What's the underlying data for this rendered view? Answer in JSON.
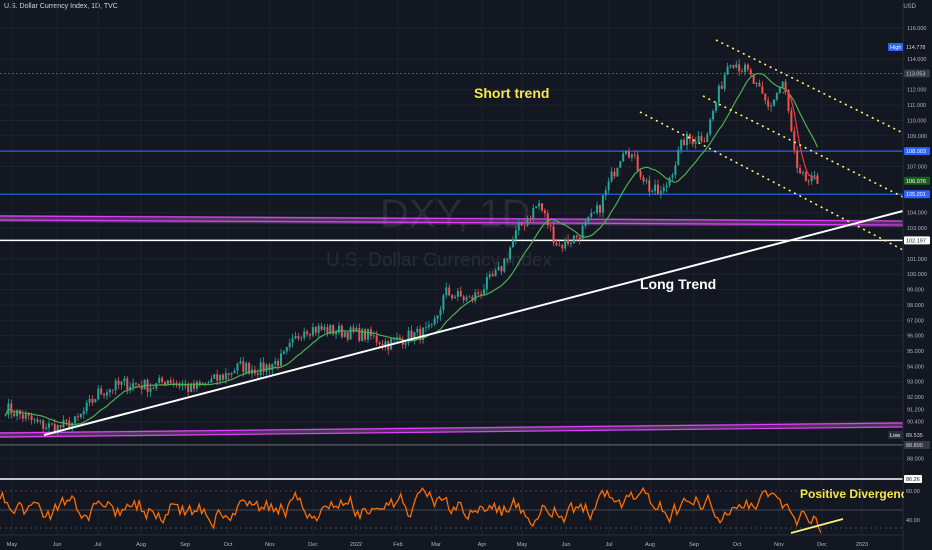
{
  "header": {
    "title": "U.S. Dollar Currency Index, 1D, TVC",
    "currency": "USD"
  },
  "watermark": {
    "symbol": "DXY, 1D",
    "name": "U.S. Dollar Currency Index"
  },
  "annotations": {
    "short_trend": "Short trend",
    "long_trend": "Long Trend",
    "divergence": "Positive Divergence"
  },
  "colors": {
    "background": "#131722",
    "up": "#26a69a",
    "down": "#ef5350",
    "ma": "#4caf50",
    "ma_fast": "#f23645",
    "channel": "#fff176",
    "support": "#2962ff",
    "band": "#e040fb",
    "trendline": "#ffffff",
    "rsi": "#ff6d00"
  },
  "chart_data": {
    "type": "candlestick",
    "price_axis": {
      "ticks": [
        "116.000",
        "114.000",
        "112.000",
        "111.000",
        "110.000",
        "109.000",
        "107.000",
        "104.000",
        "103.000",
        "101.000",
        "100.000",
        "99.000",
        "98.000",
        "97.000",
        "96.000",
        "95.000",
        "94.000",
        "93.000",
        "92.000",
        "91.200",
        "90.400",
        "88.000"
      ],
      "labels": [
        {
          "text": "High",
          "value": "114.778"
        },
        {
          "text": "",
          "value": "113.053"
        },
        {
          "text": "",
          "value": "108.003"
        },
        {
          "text": "",
          "value": "106.076"
        },
        {
          "text": "",
          "value": "105.201"
        },
        {
          "text": "",
          "value": "102.197"
        },
        {
          "text": "Low",
          "value": "89.535"
        },
        {
          "text": "",
          "value": "88.890"
        }
      ]
    },
    "time_axis": [
      "May",
      "Jun",
      "Jul",
      "Aug",
      "Sep",
      "Oct",
      "Nov",
      "Dec",
      "2022",
      "Feb",
      "Mar",
      "Apr",
      "May",
      "Jun",
      "Jul",
      "Aug",
      "Sep",
      "Oct",
      "Nov",
      "Dec",
      "2023"
    ],
    "price_path": [
      [
        "2021-04-25",
        91.3
      ],
      [
        "2021-05-20",
        90.2
      ],
      [
        "2021-06-01",
        90.0
      ],
      [
        "2021-06-15",
        90.4
      ],
      [
        "2021-07-01",
        92.3
      ],
      [
        "2021-07-20",
        92.9
      ],
      [
        "2021-08-10",
        92.7
      ],
      [
        "2021-08-20",
        93.2
      ],
      [
        "2021-09-05",
        92.5
      ],
      [
        "2021-09-25",
        93.2
      ],
      [
        "2021-10-10",
        94.0
      ],
      [
        "2021-10-25",
        93.8
      ],
      [
        "2021-11-10",
        94.5
      ],
      [
        "2021-11-25",
        96.5
      ],
      [
        "2021-12-20",
        96.3
      ],
      [
        "2022-01-10",
        96.0
      ],
      [
        "2022-01-25",
        95.5
      ],
      [
        "2022-02-10",
        96.0
      ],
      [
        "2022-02-25",
        96.3
      ],
      [
        "2022-03-07",
        98.8
      ],
      [
        "2022-03-25",
        98.3
      ],
      [
        "2022-04-15",
        100.2
      ],
      [
        "2022-04-28",
        102.9
      ],
      [
        "2022-05-13",
        104.6
      ],
      [
        "2022-05-27",
        101.8
      ],
      [
        "2022-06-10",
        102.5
      ],
      [
        "2022-06-25",
        104.2
      ],
      [
        "2022-07-14",
        108.5
      ],
      [
        "2022-08-01",
        105.5
      ],
      [
        "2022-08-10",
        105.2
      ],
      [
        "2022-08-25",
        108.7
      ],
      [
        "2022-09-10",
        109.0
      ],
      [
        "2022-09-27",
        114.1
      ],
      [
        "2022-10-10",
        113.1
      ],
      [
        "2022-10-25",
        110.8
      ],
      [
        "2022-11-05",
        112.6
      ],
      [
        "2022-11-15",
        106.3
      ],
      [
        "2022-11-25",
        106.0
      ],
      [
        "2022-11-30",
        106.0
      ]
    ],
    "price_range": [
      88.0,
      116.4
    ],
    "horizontal_levels": [
      113.053,
      108.003,
      105.201,
      102.197,
      88.89
    ],
    "indicator": {
      "name": "RSI",
      "levels": [
        "86.26",
        "60.00",
        "40.00"
      ]
    }
  }
}
